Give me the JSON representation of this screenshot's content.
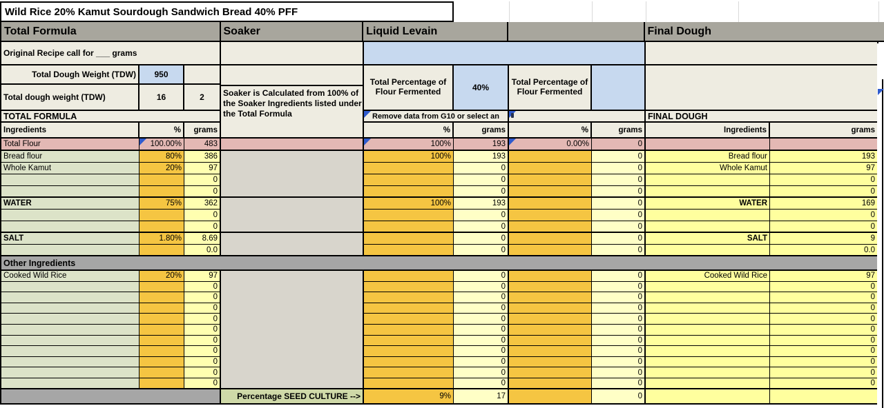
{
  "title": "Wild Rice 20% Kamut Sourdough Sandwich Bread 40% PFF",
  "sections": {
    "total_formula": "Total Formula",
    "soaker": "Soaker",
    "liquid_levain": "Liquid Levain",
    "unnamed": "",
    "final_dough": "Final Dough"
  },
  "total_formula": {
    "original_recipe_label": "Original Recipe call for ___ grams",
    "tdw_row1": {
      "label": "Total Dough Weight (TDW)",
      "value": "950",
      "extra": ""
    },
    "tdw_row2": {
      "label": "Total dough weight (TDW)",
      "value": "16",
      "extra": "2"
    },
    "section_label": "TOTAL FORMULA",
    "headers": {
      "ingredients": "Ingredients",
      "pct": "%",
      "grams": "grams"
    }
  },
  "soaker": {
    "note": "Soaker is Calculated from 100% of the Soaker Ingredients listed under the Total Formula",
    "seed_culture_label": "Percentage SEED CULTURE  -->"
  },
  "liquid_levain": {
    "pff_label": "Total Percentage of Flour Fermented",
    "pff_value": "40%",
    "note": "Remove data from G10 or select an",
    "headers": {
      "pct": "%",
      "grams": "grams"
    }
  },
  "second_levain": {
    "pff_label": "Total Percentage of Flour Fermented",
    "pff_value": "",
    "headers": {
      "pct": "%",
      "grams": "grams"
    }
  },
  "final_dough": {
    "section_label": "FINAL DOUGH",
    "headers": {
      "ingredients": "Ingredients",
      "grams": "grams"
    }
  },
  "other_ingredients_label": "Other Ingredients",
  "colors": {
    "header_gray": "#a8a69d",
    "beige": "#eeece1",
    "blue": "#c7d9ef",
    "pink": "#e3b8b4",
    "green": "#dce3c8",
    "orange": "#f5c542",
    "yellow_tf": "#ffffb0",
    "yellow_levain": "#ffffc6",
    "yellow_fd": "#ffff9e",
    "divider_gray": "#a6a6a6",
    "soaker_gray": "#d8d5cc",
    "seed_green": "#cfd9a8",
    "flag_blue": "#2f5bce"
  },
  "rows": [
    {
      "cls": "pink",
      "sep": true,
      "name": "Total Flour",
      "pct": "100.00%",
      "g": "483",
      "lpct": "100%",
      "lg": "193",
      "spct": "0.00%",
      "sg": "0",
      "fname": "",
      "fg": "",
      "f1": true,
      "f2": true,
      "f3": true
    },
    {
      "name": "Bread flour",
      "pct": "80%",
      "g": "386",
      "lpct": "100%",
      "lg": "193",
      "spct": "",
      "sg": "0",
      "fname": "Bread flour",
      "fg": "193"
    },
    {
      "name": "Whole Kamut",
      "pct": "20%",
      "g": "97",
      "lpct": "",
      "lg": "0",
      "spct": "",
      "sg": "0",
      "fname": "Whole Kamut",
      "fg": "97"
    },
    {
      "name": "",
      "pct": "",
      "g": "0",
      "lpct": "",
      "lg": "0",
      "spct": "",
      "sg": "0",
      "fname": "",
      "fg": "0"
    },
    {
      "sep": true,
      "name": "",
      "pct": "",
      "g": "0",
      "lpct": "",
      "lg": "0",
      "spct": "",
      "sg": "0",
      "fname": "",
      "fg": "0"
    },
    {
      "bold": true,
      "name": "WATER",
      "pct": "75%",
      "g": "362",
      "lpct": "100%",
      "lg": "193",
      "spct": "",
      "sg": "0",
      "fname": "WATER",
      "fg": "169"
    },
    {
      "name": "",
      "pct": "",
      "g": "0",
      "lpct": "",
      "lg": "0",
      "spct": "",
      "sg": "0",
      "fname": "",
      "fg": "0"
    },
    {
      "sep": true,
      "name": "",
      "pct": "",
      "g": "0",
      "lpct": "",
      "lg": "0",
      "spct": "",
      "sg": "0",
      "fname": "",
      "fg": "0"
    },
    {
      "bold": true,
      "name": "SALT",
      "pct": "1.80%",
      "g": "8.69",
      "lpct": "",
      "lg": "0",
      "spct": "",
      "sg": "0",
      "fname": "SALT",
      "fg": "9"
    },
    {
      "sep": true,
      "name": "",
      "pct": "",
      "g": "0.0",
      "lpct": "",
      "lg": "0",
      "spct": "",
      "sg": "0",
      "fname": "",
      "fg": "0.0"
    },
    {
      "cls": "divider",
      "label": "Other Ingredients"
    },
    {
      "small": true,
      "name": "Cooked Wild Rice",
      "pct": "20%",
      "g": "97",
      "lpct": "",
      "lg": "0",
      "spct": "",
      "sg": "0",
      "fname": "Cooked Wild Rice",
      "fg": "97"
    },
    {
      "small": true,
      "name": "",
      "pct": "",
      "g": "0",
      "lpct": "",
      "lg": "0",
      "spct": "",
      "sg": "0",
      "fname": "",
      "fg": "0"
    },
    {
      "small": true,
      "name": "",
      "pct": "",
      "g": "0",
      "lpct": "",
      "lg": "0",
      "spct": "",
      "sg": "0",
      "fname": "",
      "fg": "0"
    },
    {
      "small": true,
      "name": "",
      "pct": "",
      "g": "0",
      "lpct": "",
      "lg": "0",
      "spct": "",
      "sg": "0",
      "fname": "",
      "fg": "0"
    },
    {
      "small": true,
      "name": "",
      "pct": "",
      "g": "0",
      "lpct": "",
      "lg": "0",
      "spct": "",
      "sg": "0",
      "fname": "",
      "fg": "0"
    },
    {
      "small": true,
      "name": "",
      "pct": "",
      "g": "0",
      "lpct": "",
      "lg": "0",
      "spct": "",
      "sg": "0",
      "fname": "",
      "fg": "0"
    },
    {
      "small": true,
      "name": "",
      "pct": "",
      "g": "0",
      "lpct": "",
      "lg": "0",
      "spct": "",
      "sg": "0",
      "fname": "",
      "fg": "0"
    },
    {
      "small": true,
      "name": "",
      "pct": "",
      "g": "0",
      "lpct": "",
      "lg": "0",
      "spct": "",
      "sg": "0",
      "fname": "",
      "fg": "0"
    },
    {
      "small": true,
      "name": "",
      "pct": "",
      "g": "0",
      "lpct": "",
      "lg": "0",
      "spct": "",
      "sg": "0",
      "fname": "",
      "fg": "0"
    },
    {
      "small": true,
      "name": "",
      "pct": "",
      "g": "0",
      "lpct": "",
      "lg": "0",
      "spct": "",
      "sg": "0",
      "fname": "",
      "fg": "0"
    },
    {
      "small": true,
      "sep": true,
      "name": "",
      "pct": "",
      "g": "0",
      "lpct": "",
      "lg": "0",
      "spct": "",
      "sg": "0",
      "fname": "",
      "fg": "0"
    },
    {
      "cls": "footer",
      "sep": true,
      "soaker_label": "Percentage SEED CULTURE  -->",
      "lpct": "9%",
      "lg": "17",
      "spct": "",
      "sg": "0"
    }
  ]
}
